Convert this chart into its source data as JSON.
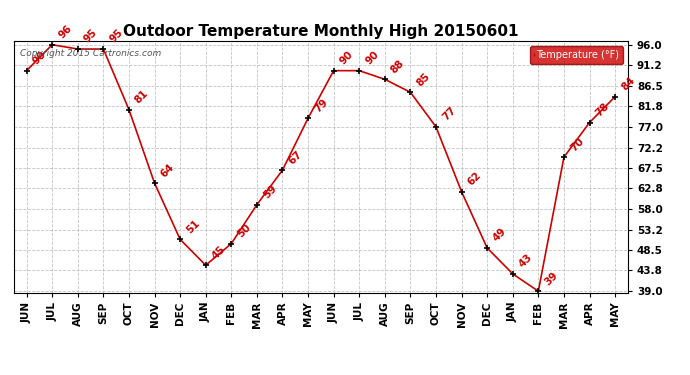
{
  "title": "Outdoor Temperature Monthly High 20150601",
  "copyright": "Copyright 2015 Cartronics.com",
  "legend_label": "Temperature (°F)",
  "months": [
    "JUN",
    "JUL",
    "AUG",
    "SEP",
    "OCT",
    "NOV",
    "DEC",
    "JAN",
    "FEB",
    "MAR",
    "APR",
    "MAY",
    "JUN",
    "JUL",
    "AUG",
    "SEP",
    "OCT",
    "NOV",
    "DEC",
    "JAN",
    "FEB",
    "MAR",
    "APR",
    "MAY"
  ],
  "values": [
    90,
    96,
    95,
    95,
    81,
    64,
    51,
    45,
    50,
    59,
    67,
    79,
    90,
    90,
    88,
    85,
    77,
    62,
    49,
    43,
    39,
    70,
    78,
    84
  ],
  "line_color": "#cc0000",
  "marker_color": "#000000",
  "label_color": "#cc0000",
  "bg_color": "#ffffff",
  "grid_color": "#aaaaaa",
  "ylim_min": 39.0,
  "ylim_max": 96.0,
  "yticks": [
    39.0,
    43.8,
    48.5,
    53.2,
    58.0,
    62.8,
    67.5,
    72.2,
    77.0,
    81.8,
    86.5,
    91.2,
    96.0
  ],
  "title_fontsize": 11,
  "label_fontsize": 7.5,
  "tick_fontsize": 7.5,
  "legend_bg": "#cc0000",
  "legend_text_color": "#ffffff",
  "copyright_fontsize": 6.5,
  "copyright_color": "#555555"
}
